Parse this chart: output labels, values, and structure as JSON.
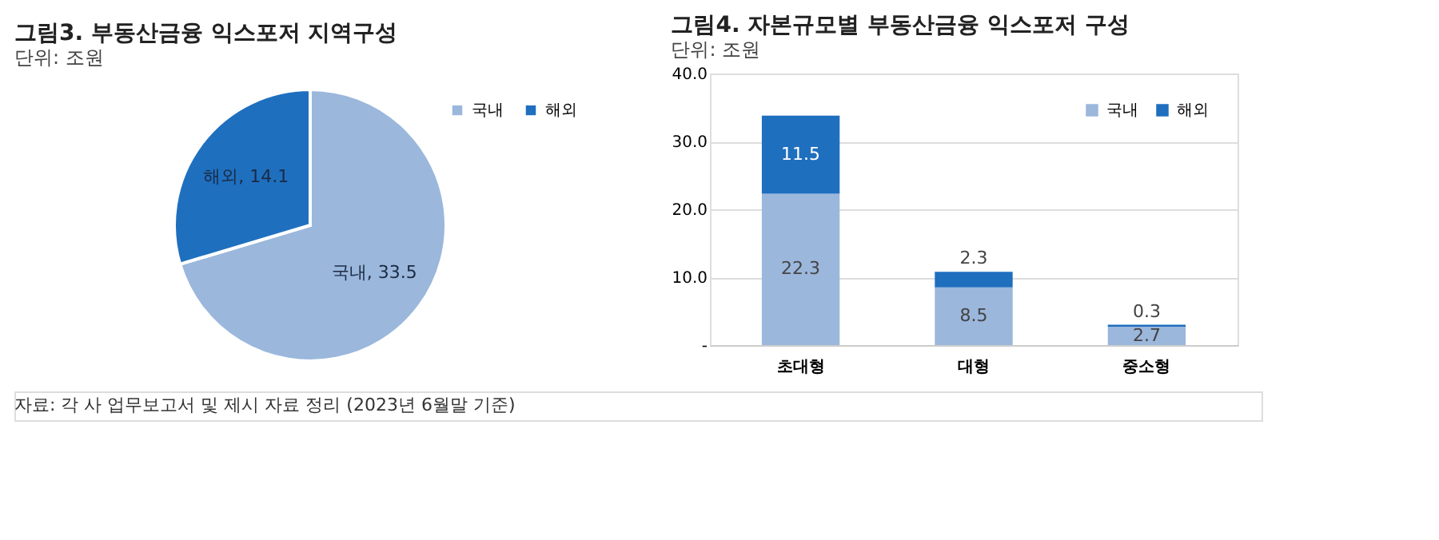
{
  "chart_data": [
    {
      "type": "pie",
      "title": "그림3. 부동산금융 익스포저 지역구성",
      "subtitle": "단위: 조원",
      "categories": [
        "국내",
        "해외"
      ],
      "values": [
        33.5,
        14.1
      ],
      "colors": [
        "#9bb7dc",
        "#1f6fbf"
      ],
      "value_labels": [
        "국내, 33.5",
        "해외, 14.1"
      ],
      "legend": "top right",
      "annotations": [
        "자료: 각 사 업무보고서 및 제시 자료 정리 (2023년 6월말 기준)"
      ]
    },
    {
      "type": "bar",
      "stacked": true,
      "title": "그림4. 자본규모별 부동산금융 익스포저 구성",
      "subtitle": "단위: 조원",
      "categories": [
        "초대형",
        "대형",
        "중소형"
      ],
      "series": [
        {
          "name": "국내",
          "color": "#9bb7dc",
          "values": [
            22.3,
            8.5,
            2.7
          ]
        },
        {
          "name": "해외",
          "color": "#1f6fbf",
          "values": [
            11.5,
            2.3,
            0.3
          ]
        }
      ],
      "ylim": [
        0,
        40
      ],
      "yticks": [
        {
          "value": 0,
          "label": "-"
        },
        {
          "value": 10,
          "label": "10.0"
        },
        {
          "value": 20,
          "label": "20.0"
        },
        {
          "value": 30,
          "label": "30.0"
        },
        {
          "value": 40,
          "label": "40.0"
        }
      ],
      "grid": "y",
      "legend": "top right",
      "data_labels": true
    }
  ]
}
